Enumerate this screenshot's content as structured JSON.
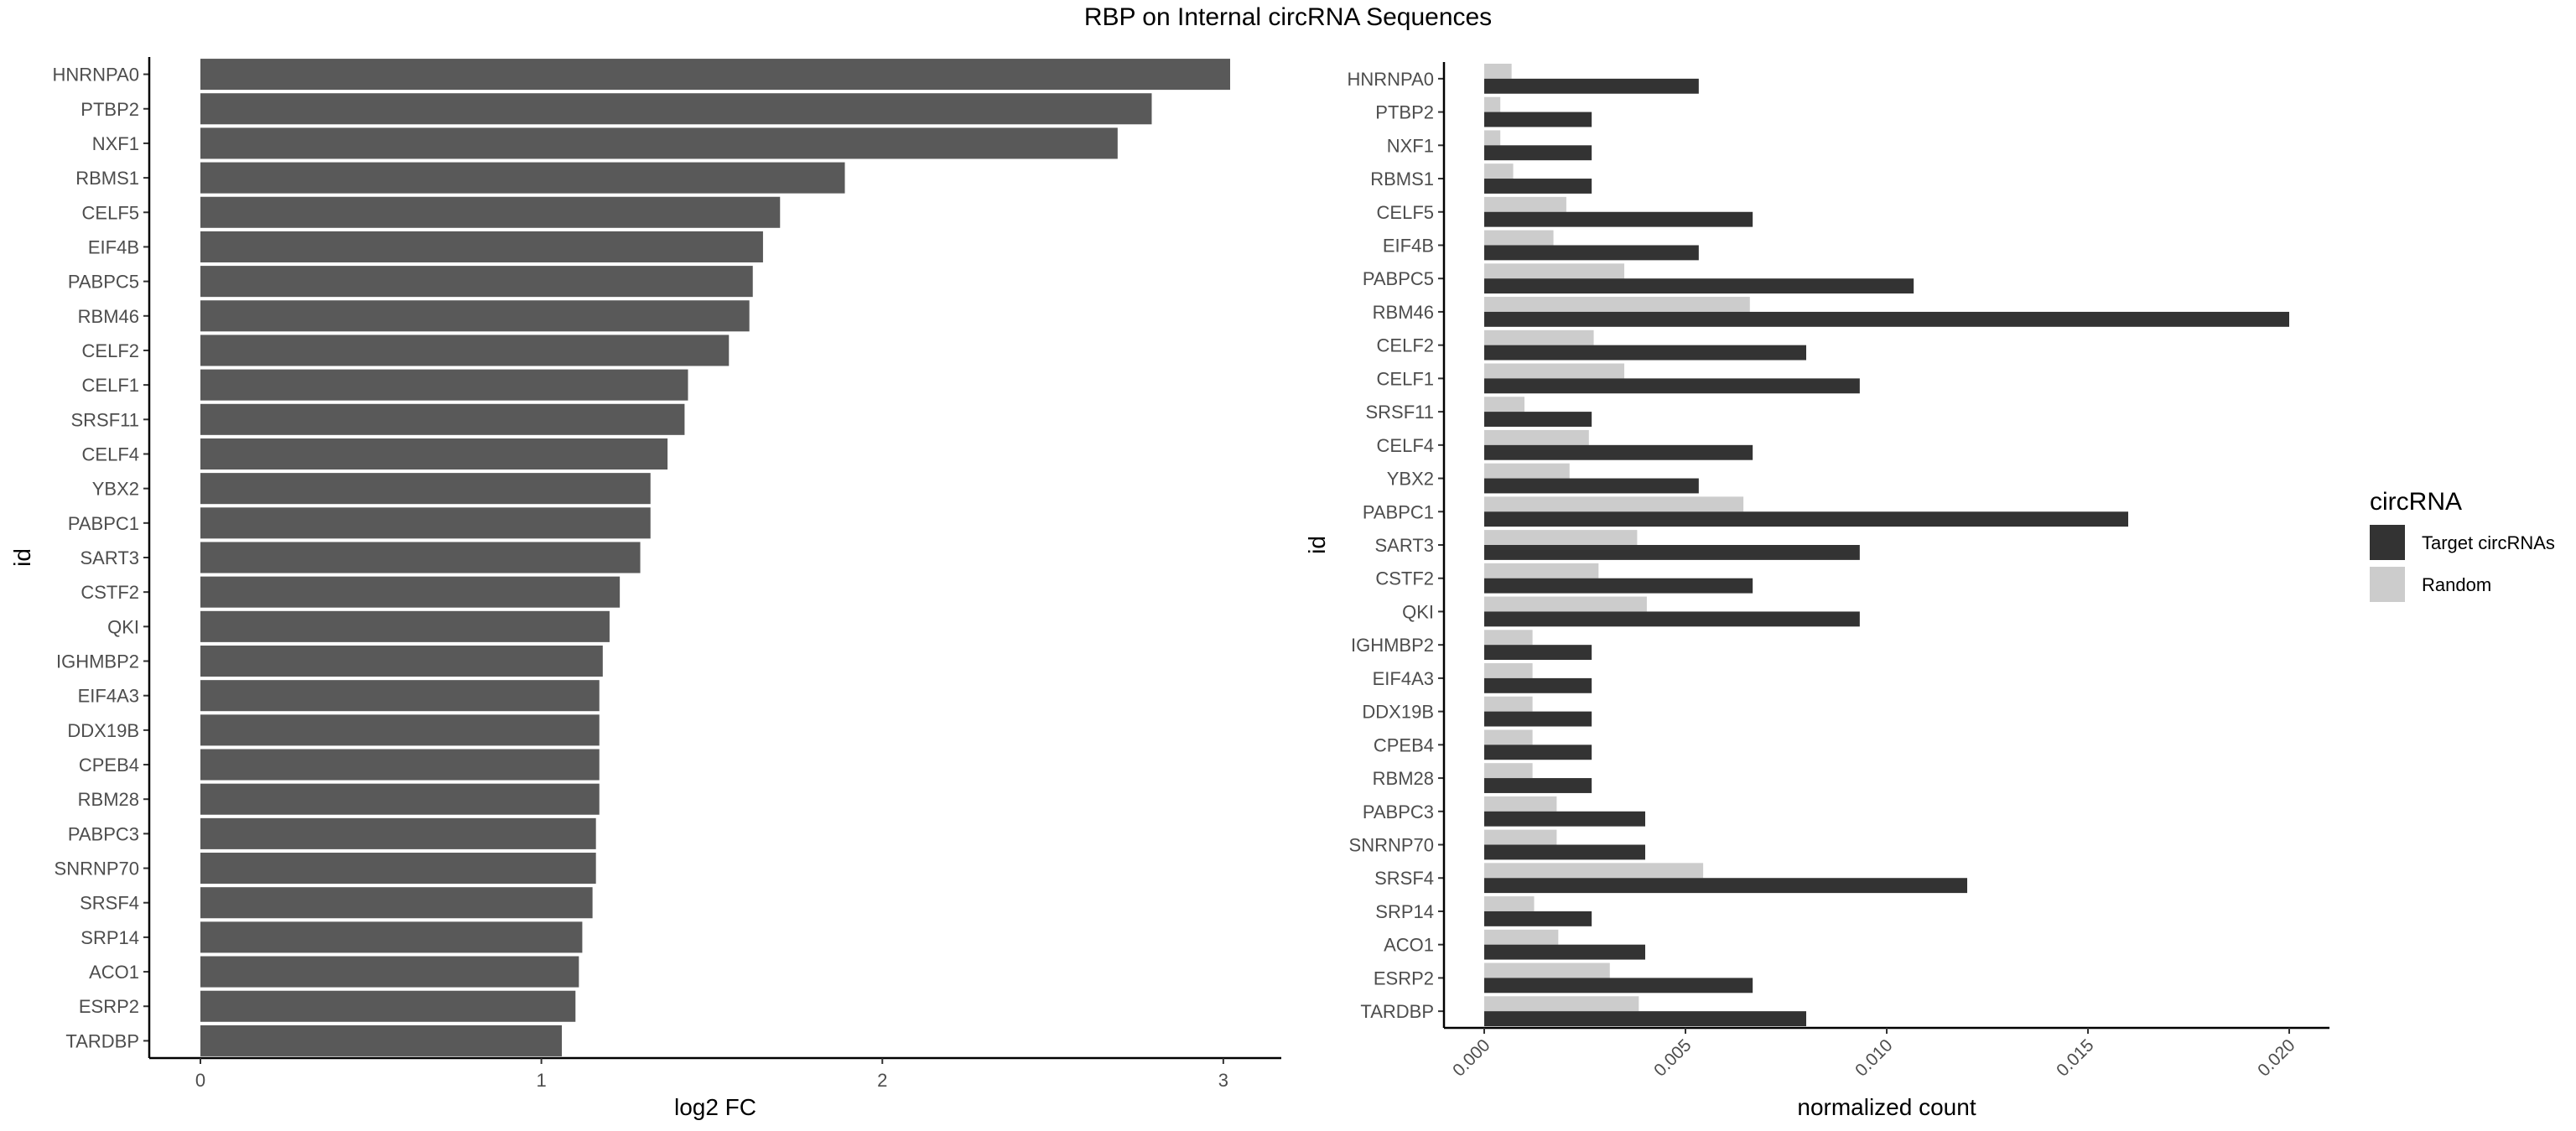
{
  "figure": {
    "title": "RBP on Internal circRNA Sequences"
  },
  "chart_data": [
    {
      "type": "bar",
      "orientation": "horizontal",
      "xlabel": "log2 FC",
      "ylabel": "id",
      "xlim": [
        -0.15,
        3.17
      ],
      "xticks": [
        0,
        1,
        2,
        3
      ],
      "grid": false,
      "color": "#595959",
      "categories": [
        "HNRNPA0",
        "PTBP2",
        "NXF1",
        "RBMS1",
        "CELF5",
        "EIF4B",
        "PABPC5",
        "RBM46",
        "CELF2",
        "CELF1",
        "SRSF11",
        "CELF4",
        "YBX2",
        "PABPC1",
        "SART3",
        "CSTF2",
        "QKI",
        "IGHMBP2",
        "EIF4A3",
        "DDX19B",
        "CPEB4",
        "RBM28",
        "PABPC3",
        "SNRNP70",
        "SRSF4",
        "SRP14",
        "ACO1",
        "ESRP2",
        "TARDBP"
      ],
      "values": [
        3.02,
        2.79,
        2.69,
        1.89,
        1.7,
        1.65,
        1.62,
        1.61,
        1.55,
        1.43,
        1.42,
        1.37,
        1.32,
        1.32,
        1.29,
        1.23,
        1.2,
        1.18,
        1.17,
        1.17,
        1.17,
        1.17,
        1.16,
        1.16,
        1.15,
        1.12,
        1.11,
        1.1,
        1.06
      ]
    },
    {
      "type": "bar",
      "orientation": "horizontal",
      "grouped": true,
      "xlabel": "normalized count",
      "ylabel": "id",
      "xlim": [
        -0.001,
        0.021
      ],
      "xticks": [
        0.0,
        0.005,
        0.01,
        0.015,
        0.02
      ],
      "xtick_labels": [
        "0.000",
        "0.005",
        "0.010",
        "0.015",
        "0.020"
      ],
      "grid": false,
      "legend": {
        "title": "circRNA",
        "position": "right"
      },
      "categories": [
        "HNRNPA0",
        "PTBP2",
        "NXF1",
        "RBMS1",
        "CELF5",
        "EIF4B",
        "PABPC5",
        "RBM46",
        "CELF2",
        "CELF1",
        "SRSF11",
        "CELF4",
        "YBX2",
        "PABPC1",
        "SART3",
        "CSTF2",
        "QKI",
        "IGHMBP2",
        "EIF4A3",
        "DDX19B",
        "CPEB4",
        "RBM28",
        "PABPC3",
        "SNRNP70",
        "SRSF4",
        "SRP14",
        "ACO1",
        "ESRP2",
        "TARDBP"
      ],
      "series": [
        {
          "name": "Target circRNAs",
          "color": "#333333",
          "values": [
            0.00533,
            0.00267,
            0.00267,
            0.00267,
            0.00667,
            0.00533,
            0.01067,
            0.02,
            0.008,
            0.00933,
            0.00267,
            0.00667,
            0.00533,
            0.016,
            0.00933,
            0.00667,
            0.00933,
            0.00267,
            0.00267,
            0.00267,
            0.00267,
            0.00267,
            0.004,
            0.004,
            0.012,
            0.00267,
            0.004,
            0.00667,
            0.008
          ]
        },
        {
          "name": "Random",
          "color": "#cccccc",
          "values": [
            0.00068,
            0.0004,
            0.0004,
            0.00072,
            0.00204,
            0.00172,
            0.00348,
            0.0066,
            0.00272,
            0.00348,
            0.001,
            0.0026,
            0.00212,
            0.00644,
            0.0038,
            0.00284,
            0.00404,
            0.0012,
            0.0012,
            0.0012,
            0.0012,
            0.0012,
            0.0018,
            0.0018,
            0.00544,
            0.00124,
            0.00184,
            0.00312,
            0.00384
          ]
        }
      ]
    }
  ]
}
